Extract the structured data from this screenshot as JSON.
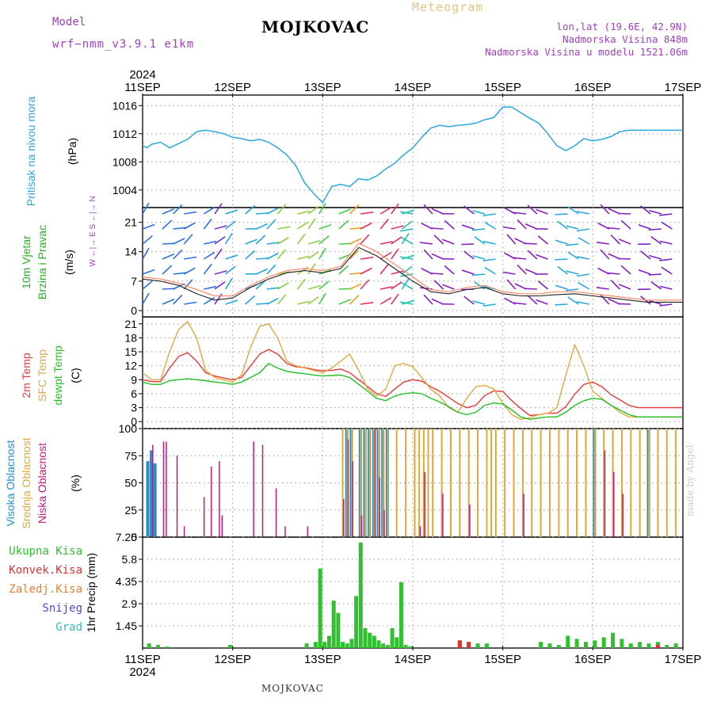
{
  "header": {
    "title": "MOJKOVAC",
    "subtitle": "Meteogram",
    "model_label": "Model",
    "model_name": "wrf−nmm_v3.9.1  e1km",
    "lonlat": "lon,lat (19.6E, 42.9N)",
    "elevation": "Nadmorska Visina 848m",
    "model_elevation": "Nadmorska Visina u modelu 1521.06m"
  },
  "footer": {
    "station": "MOJKOVAC",
    "credit": "made by Angel"
  },
  "time_axis": {
    "year_top": "2024",
    "year_bottom": "2024",
    "days": [
      "11SEP",
      "12SEP",
      "13SEP",
      "14SEP",
      "15SEP",
      "16SEP",
      "17SEP"
    ]
  },
  "colors": {
    "pressure": "#2aa8e0",
    "temp2m": "#e8383a",
    "sfc_temp": "#e0a840",
    "dewpt": "#22c022",
    "high_cloud": "#1e90d0",
    "mid_cloud": "#e0a838",
    "low_cloud": "#c01880",
    "total_precip": "#30c030",
    "conv_precip": "#e03030",
    "frozen_precip": "#e88030",
    "snow": "#4a4ae0",
    "graupel": "#30c0c0"
  },
  "chart_data": [
    {
      "type": "line",
      "name": "pressure",
      "ylabel": "Pritisak na nivou mora",
      "unit": "(hPa)",
      "yticks": [
        "1004",
        "1008",
        "1012",
        "1016"
      ],
      "ylim": [
        1001.5,
        1017.5
      ],
      "x_days": [
        0,
        0.05,
        0.1,
        0.2,
        0.3,
        0.4,
        0.5,
        0.6,
        0.7,
        0.8,
        0.9,
        1.0,
        1.1,
        1.2,
        1.3,
        1.4,
        1.5,
        1.6,
        1.7,
        1.8,
        1.9,
        2.0,
        2.1,
        2.2,
        2.3,
        2.4,
        2.5,
        2.6,
        2.7,
        2.8,
        2.9,
        3.0,
        3.1,
        3.2,
        3.3,
        3.4,
        3.5,
        3.6,
        3.7,
        3.8,
        3.9,
        4.0,
        4.1,
        4.2,
        4.3,
        4.4,
        4.5,
        4.6,
        4.7,
        4.8,
        4.9,
        5.0,
        5.1,
        5.2,
        5.3,
        5.4,
        5.5,
        5.6,
        5.7,
        5.8,
        5.9,
        6.0
      ],
      "values": [
        1010.3,
        1010.0,
        1010.5,
        1010.8,
        1010.0,
        1010.6,
        1011.2,
        1012.3,
        1012.5,
        1012.3,
        1012.0,
        1011.5,
        1011.3,
        1011.0,
        1011.2,
        1010.8,
        1010.0,
        1009.0,
        1007.5,
        1005.0,
        1003.5,
        1002.2,
        1004.5,
        1004.8,
        1004.5,
        1005.6,
        1005.4,
        1006.0,
        1007.0,
        1007.8,
        1009.0,
        1010.0,
        1011.5,
        1012.8,
        1013.2,
        1013.0,
        1013.2,
        1013.3,
        1013.5,
        1014.0,
        1014.3,
        1015.8,
        1015.8,
        1015.0,
        1014.2,
        1013.5,
        1012.0,
        1010.3,
        1009.6,
        1010.3,
        1011.3,
        1011.0,
        1011.2,
        1011.6,
        1012.3,
        1012.5,
        1012.5,
        1012.5,
        1012.5,
        1012.5,
        1012.5,
        1012.5
      ]
    },
    {
      "type": "line",
      "name": "wind",
      "ylabel": "10m Vjetar",
      "ylabel2": "Brzina i Pravac",
      "unit": "(m/s)",
      "compass": "W ←|→ E   S ←|→ N",
      "yticks": [
        "0",
        "7",
        "14",
        "21"
      ],
      "ylim": [
        -1.5,
        24.5
      ],
      "x_days": [
        0,
        0.2,
        0.4,
        0.6,
        0.8,
        1.0,
        1.2,
        1.4,
        1.6,
        1.8,
        2.0,
        2.2,
        2.4,
        2.6,
        2.8,
        3.0,
        3.2,
        3.4,
        3.6,
        3.8,
        4.0,
        4.2,
        4.4,
        4.6,
        4.8,
        5.0,
        5.2,
        5.4,
        5.6,
        5.8,
        6.0
      ],
      "speed": [
        7.5,
        7.0,
        6.0,
        4.0,
        2.5,
        3.0,
        5.5,
        7.5,
        9.0,
        9.5,
        9.0,
        10.0,
        15.0,
        13.0,
        10.0,
        7.0,
        4.5,
        4.0,
        5.0,
        5.5,
        4.0,
        3.5,
        3.5,
        3.8,
        4.0,
        3.5,
        3.0,
        2.5,
        2.0,
        2.0,
        2.0
      ],
      "gust": [
        8.0,
        7.5,
        6.5,
        5.0,
        3.5,
        3.5,
        6.0,
        8.0,
        9.5,
        10.0,
        9.5,
        10.5,
        16.0,
        14.0,
        11.0,
        8.0,
        5.0,
        4.5,
        5.5,
        6.0,
        4.5,
        4.0,
        4.0,
        4.5,
        4.5,
        4.0,
        3.5,
        3.0,
        2.5,
        2.5,
        2.5
      ]
    },
    {
      "type": "line",
      "name": "temperature",
      "ylabels": [
        "2m Temp",
        "SFC Temp",
        "dewpt Temp"
      ],
      "unit": "(C)",
      "yticks": [
        "0",
        "3",
        "6",
        "9",
        "12",
        "15",
        "18",
        "21"
      ],
      "ylim": [
        -1.5,
        22.5
      ],
      "x_days": [
        0,
        0.1,
        0.2,
        0.3,
        0.4,
        0.5,
        0.6,
        0.7,
        0.8,
        0.9,
        1.0,
        1.1,
        1.2,
        1.3,
        1.4,
        1.5,
        1.6,
        1.7,
        1.8,
        1.9,
        2.0,
        2.1,
        2.2,
        2.3,
        2.4,
        2.5,
        2.6,
        2.7,
        2.8,
        2.9,
        3.0,
        3.1,
        3.2,
        3.3,
        3.4,
        3.5,
        3.6,
        3.7,
        3.8,
        3.9,
        4.0,
        4.1,
        4.2,
        4.3,
        4.4,
        4.5,
        4.6,
        4.7,
        4.8,
        4.9,
        5.0,
        5.1,
        5.2,
        5.3,
        5.4,
        5.5,
        5.6,
        5.7,
        5.8,
        5.9,
        6.0
      ],
      "series": [
        {
          "name": "2m Temp",
          "values": [
            9.0,
            8.6,
            8.6,
            11.5,
            14.0,
            14.8,
            13.0,
            10.5,
            9.8,
            9.4,
            9.0,
            9.5,
            12.0,
            14.5,
            15.5,
            14.5,
            12.5,
            11.8,
            11.6,
            11.2,
            10.9,
            11.0,
            11.3,
            10.5,
            9.0,
            7.5,
            6.0,
            5.4,
            7.0,
            8.5,
            9.0,
            8.7,
            7.5,
            6.5,
            5.2,
            3.9,
            3.0,
            3.5,
            5.6,
            6.6,
            6.5,
            4.5,
            2.8,
            1.3,
            1.5,
            1.8,
            1.8,
            3.2,
            5.9,
            8.0,
            8.5,
            7.5,
            5.8,
            4.7,
            3.5,
            3.0,
            3.0,
            3.0,
            3.0,
            3.0,
            3.0
          ]
        },
        {
          "name": "SFC Temp",
          "values": [
            10.5,
            9.0,
            9.0,
            15.0,
            19.8,
            21.5,
            18.0,
            11.0,
            9.5,
            9.0,
            8.5,
            10.0,
            16.0,
            20.5,
            21.0,
            18.0,
            13.0,
            12.0,
            11.5,
            11.0,
            10.5,
            11.5,
            13.0,
            14.5,
            11.0,
            7.0,
            5.5,
            7.0,
            12.0,
            12.5,
            11.8,
            9.5,
            7.0,
            5.5,
            3.0,
            2.0,
            5.0,
            7.5,
            7.8,
            7.0,
            4.0,
            1.5,
            0.5,
            0.8,
            1.5,
            1.8,
            3.0,
            10.0,
            16.5,
            12.0,
            6.5,
            5.0,
            3.5,
            2.0,
            1.0,
            1.0,
            1.0,
            1.0,
            1.0,
            1.0,
            1.0
          ]
        },
        {
          "name": "dewpt Temp",
          "values": [
            8.5,
            8.0,
            8.0,
            8.8,
            9.0,
            9.2,
            9.0,
            8.8,
            8.5,
            8.3,
            8.0,
            8.5,
            9.5,
            10.5,
            12.5,
            11.5,
            10.8,
            10.5,
            10.3,
            10.0,
            9.8,
            9.9,
            10.0,
            9.5,
            8.0,
            6.5,
            5.0,
            4.5,
            5.5,
            6.0,
            6.2,
            6.0,
            5.0,
            4.2,
            3.2,
            2.0,
            1.5,
            2.0,
            3.5,
            4.0,
            3.8,
            2.5,
            1.0,
            0.5,
            0.8,
            1.0,
            1.0,
            2.0,
            3.5,
            4.5,
            5.0,
            4.8,
            3.5,
            2.5,
            1.5,
            1.0,
            1.0,
            1.0,
            1.0,
            1.0,
            1.0
          ]
        }
      ]
    },
    {
      "type": "bar",
      "name": "cloud",
      "ylabels": [
        "Visoka Oblacnost",
        "Srednja Oblacnost",
        "Niska Oblacnost"
      ],
      "unit": "(%)",
      "yticks": [
        "0",
        "25",
        "50",
        "75",
        "100"
      ],
      "ylim": [
        0,
        100
      ],
      "x_days": [
        0.04,
        0.08,
        0.12,
        0.2,
        0.23,
        0.35,
        0.43,
        0.65,
        0.73,
        0.82,
        0.85,
        0.95,
        1.2,
        1.3,
        1.45,
        1.55,
        1.65,
        1.7,
        1.8,
        1.9,
        2.1,
        2.2,
        2.25,
        2.3,
        2.4,
        2.45,
        2.5,
        2.55,
        2.6,
        2.65,
        2.7,
        2.8,
        2.9,
        3.0,
        3.05,
        3.1,
        3.15,
        3.2,
        3.3,
        3.4,
        3.5,
        3.6,
        3.7,
        3.8,
        3.85,
        3.9,
        4.0,
        4.1,
        4.2,
        4.3,
        4.4,
        4.5,
        4.6,
        4.7,
        4.8,
        4.9,
        5.0,
        5.1,
        5.2,
        5.3,
        5.4,
        5.5,
        5.6,
        5.7,
        5.8,
        5.9
      ],
      "series": [
        {
          "name": "Visoka Oblacnost",
          "values": [
            70,
            80,
            68,
            0,
            0,
            0,
            0,
            0,
            0,
            0,
            0,
            0,
            0,
            0,
            0,
            0,
            0,
            0,
            0,
            0,
            0,
            0,
            100,
            100,
            100,
            100,
            100,
            100,
            100,
            100,
            100,
            0,
            0,
            0,
            0,
            0,
            0,
            0,
            0,
            0,
            0,
            0,
            0,
            0,
            0,
            0,
            0,
            0,
            0,
            0,
            0,
            0,
            0,
            0,
            0,
            0,
            100,
            0,
            0,
            0,
            0,
            0,
            100,
            0,
            0,
            0
          ]
        },
        {
          "name": "Srednja Oblacnost",
          "values": [
            0,
            0,
            0,
            0,
            0,
            0,
            0,
            0,
            0,
            0,
            0,
            0,
            0,
            0,
            0,
            0,
            0,
            0,
            0,
            0,
            0,
            100,
            100,
            100,
            100,
            100,
            100,
            100,
            100,
            100,
            100,
            100,
            100,
            100,
            100,
            100,
            100,
            100,
            100,
            100,
            100,
            100,
            100,
            100,
            100,
            100,
            100,
            100,
            100,
            100,
            100,
            100,
            100,
            100,
            100,
            100,
            100,
            100,
            100,
            100,
            100,
            100,
            100,
            100,
            100,
            100
          ]
        },
        {
          "name": "Niska Oblacnost",
          "values": [
            0,
            85,
            0,
            88,
            88,
            75,
            10,
            37,
            65,
            70,
            20,
            0,
            88,
            85,
            45,
            10,
            0,
            0,
            10,
            0,
            0,
            35,
            90,
            70,
            20,
            0,
            0,
            100,
            55,
            25,
            0,
            0,
            0,
            0,
            10,
            60,
            0,
            0,
            40,
            0,
            0,
            30,
            0,
            0,
            0,
            0,
            0,
            0,
            40,
            0,
            0,
            0,
            0,
            0,
            0,
            0,
            0,
            80,
            60,
            40,
            0,
            0,
            0,
            0,
            0,
            0
          ]
        }
      ]
    },
    {
      "type": "bar",
      "name": "precipitation",
      "legend": [
        "Ukupna Kisa",
        "Konvek.Kisa",
        "Zaledj.Kisa",
        "Snijeg",
        "Grad"
      ],
      "ylabel": "1hr Precip (mm)",
      "yticks": [
        "1.45",
        "2.9",
        "4.35",
        "5.8",
        "7.25"
      ],
      "ylim": [
        0,
        7.25
      ],
      "x_days": [
        0.05,
        0.15,
        0.25,
        0.95,
        1.8,
        1.9,
        1.95,
        2.0,
        2.05,
        2.1,
        2.15,
        2.2,
        2.25,
        2.3,
        2.35,
        2.4,
        2.45,
        2.5,
        2.55,
        2.6,
        2.65,
        2.7,
        2.75,
        2.8,
        2.85,
        2.9,
        2.95,
        3.5,
        3.6,
        3.7,
        3.8,
        4.4,
        4.5,
        4.6,
        4.7,
        4.8,
        4.9,
        5.0,
        5.1,
        5.2,
        5.3,
        5.4,
        5.5,
        5.6,
        5.7,
        5.8,
        5.9
      ],
      "series": [
        {
          "name": "Ukupna Kisa",
          "values": [
            0.3,
            0.2,
            0.1,
            0.2,
            0.3,
            0.4,
            5.2,
            0.4,
            0.8,
            3.1,
            2.3,
            0.4,
            0.3,
            0.6,
            3.4,
            6.9,
            1.3,
            1.0,
            0.8,
            0.5,
            0.3,
            0.2,
            1.3,
            0.7,
            4.3,
            0.2,
            0.1,
            0.5,
            0.4,
            0.3,
            0.3,
            0.4,
            0.3,
            0.2,
            0.8,
            0.6,
            0.4,
            0.5,
            0.7,
            1.0,
            0.6,
            0.3,
            0.4,
            0.3,
            0.4,
            0.2,
            0.3
          ]
        },
        {
          "name": "Konvek.Kisa",
          "values": [
            0,
            0,
            0,
            0,
            0,
            0,
            0,
            0,
            0,
            0,
            0,
            0,
            0,
            0,
            0,
            0,
            0,
            0,
            0,
            0,
            0,
            0,
            0,
            0,
            0,
            0,
            0,
            0.5,
            0.4,
            0,
            0,
            0,
            0,
            0,
            0,
            0,
            0,
            0,
            0,
            0,
            0,
            0,
            0,
            0,
            0.2,
            0,
            0
          ]
        }
      ]
    }
  ]
}
